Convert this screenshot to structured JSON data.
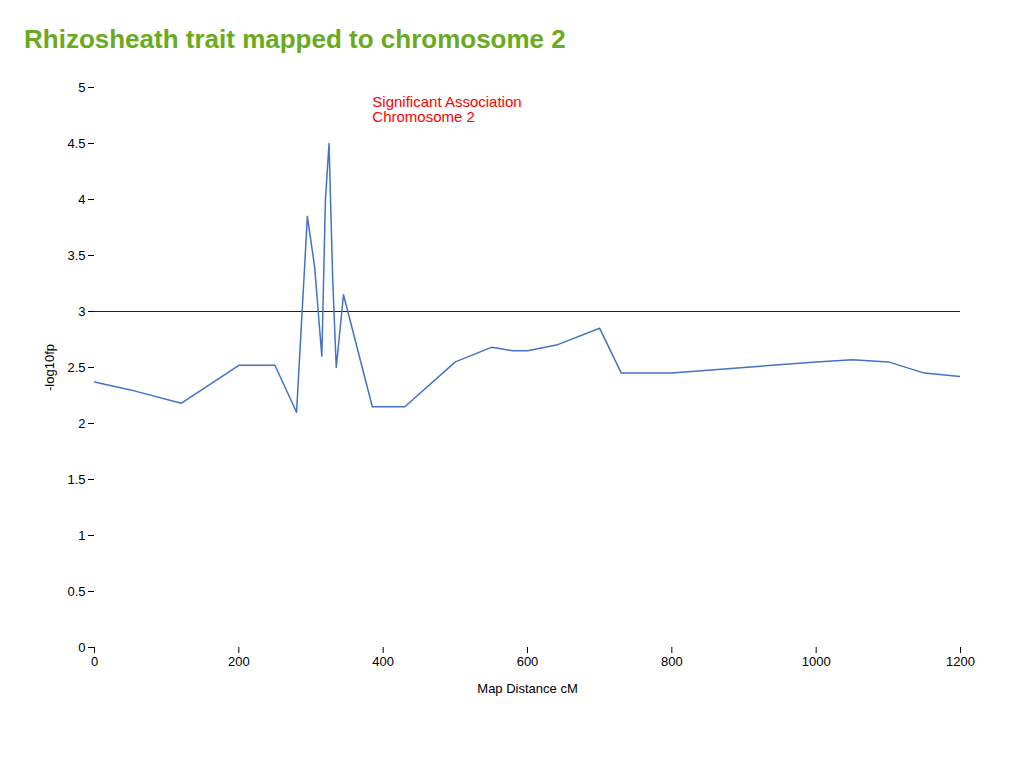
{
  "chart_data": {
    "type": "line",
    "title": "Rhizosheath trait mapped to chromosome 2",
    "title_color": "#6aaa1e",
    "xlabel": "Map Distance cM",
    "ylabel": "-log10fp",
    "x": [
      0,
      50,
      120,
      200,
      250,
      280,
      295,
      305,
      315,
      320,
      325,
      330,
      335,
      345,
      385,
      430,
      500,
      550,
      580,
      600,
      640,
      700,
      730,
      800,
      900,
      1000,
      1050,
      1100,
      1150,
      1200
    ],
    "values": [
      2.37,
      2.3,
      2.18,
      2.52,
      2.52,
      2.1,
      3.85,
      3.4,
      2.6,
      4.0,
      4.5,
      3.3,
      2.5,
      3.15,
      2.15,
      2.15,
      2.55,
      2.68,
      2.65,
      2.65,
      2.7,
      2.85,
      2.45,
      2.45,
      2.5,
      2.55,
      2.57,
      2.55,
      2.45,
      2.42
    ],
    "color": "#4472c4",
    "threshold": 3.0,
    "threshold_color": "#222222",
    "annotations": [
      {
        "text": "Significant Association\nChromosome 2",
        "x": 385,
        "y": 4.92,
        "color": "red"
      }
    ],
    "xlim": [
      0,
      1200
    ],
    "xticks": [
      0,
      200,
      400,
      600,
      800,
      1000,
      1200
    ],
    "ylim": [
      0,
      5
    ],
    "yticks": [
      0,
      0.5,
      1,
      1.5,
      2,
      2.5,
      3,
      3.5,
      4,
      4.5,
      5
    ],
    "grid": false
  }
}
